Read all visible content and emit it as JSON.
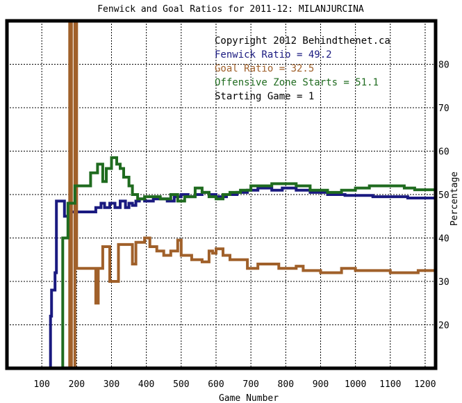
{
  "chart_data": {
    "type": "line",
    "title": "Fenwick and Goal Ratios for 2011-12: MILANJURCINA",
    "xlabel": "Game Number",
    "ylabel": "Percentage",
    "xlim": [
      0,
      1230
    ],
    "ylim": [
      10,
      90
    ],
    "x_ticks": [
      100,
      200,
      300,
      400,
      500,
      600,
      700,
      800,
      900,
      1000,
      1100,
      1200
    ],
    "y_ticks": [
      20,
      30,
      40,
      50,
      60,
      70,
      80
    ],
    "grid": true,
    "annotations": [
      {
        "text": "Copyright 2012 Behindthenet.ca",
        "color": "#000000"
      },
      {
        "text": "Fenwick Ratio = 49.2",
        "color": "#1a1a80"
      },
      {
        "text": "Goal Ratio = 32.5",
        "color": "#a0602a"
      },
      {
        "text": "Offensive Zone Starts = 51.1",
        "color": "#1f6b1f"
      },
      {
        "text": "Starting Game = 1",
        "color": "#000000"
      }
    ],
    "series": [
      {
        "color": "#1a1a80",
        "points": [
          [
            125,
            10
          ],
          [
            125,
            22
          ],
          [
            128,
            22
          ],
          [
            128,
            28
          ],
          [
            138,
            28
          ],
          [
            138,
            32
          ],
          [
            142,
            32
          ],
          [
            142,
            48.5
          ],
          [
            165,
            48.5
          ],
          [
            165,
            45
          ],
          [
            180,
            45
          ],
          [
            180,
            46
          ],
          [
            255,
            46
          ],
          [
            255,
            47
          ],
          [
            270,
            47
          ],
          [
            270,
            48
          ],
          [
            280,
            48
          ],
          [
            280,
            47
          ],
          [
            295,
            47
          ],
          [
            295,
            48
          ],
          [
            310,
            48
          ],
          [
            310,
            47
          ],
          [
            325,
            47
          ],
          [
            325,
            48.5
          ],
          [
            340,
            48.5
          ],
          [
            340,
            47
          ],
          [
            350,
            47
          ],
          [
            350,
            48
          ],
          [
            360,
            48
          ],
          [
            360,
            47.5
          ],
          [
            370,
            47.5
          ],
          [
            370,
            48.5
          ],
          [
            380,
            48.5
          ],
          [
            380,
            49
          ],
          [
            395,
            49
          ],
          [
            395,
            48.5
          ],
          [
            420,
            48.5
          ],
          [
            420,
            49
          ],
          [
            460,
            49
          ],
          [
            460,
            48.5
          ],
          [
            480,
            48.5
          ],
          [
            480,
            49.5
          ],
          [
            500,
            49.5
          ],
          [
            500,
            50
          ],
          [
            520,
            50
          ],
          [
            520,
            49.5
          ],
          [
            540,
            49.5
          ],
          [
            540,
            50
          ],
          [
            560,
            50
          ],
          [
            560,
            50.5
          ],
          [
            580,
            50.5
          ],
          [
            580,
            50
          ],
          [
            600,
            50
          ],
          [
            600,
            49.5
          ],
          [
            630,
            49.5
          ],
          [
            630,
            50
          ],
          [
            660,
            50
          ],
          [
            660,
            50.5
          ],
          [
            690,
            50.5
          ],
          [
            690,
            51
          ],
          [
            720,
            51
          ],
          [
            720,
            51.5
          ],
          [
            760,
            51.5
          ],
          [
            760,
            51
          ],
          [
            790,
            51
          ],
          [
            790,
            51.5
          ],
          [
            830,
            51.5
          ],
          [
            830,
            51
          ],
          [
            870,
            51
          ],
          [
            870,
            50.5
          ],
          [
            920,
            50.5
          ],
          [
            920,
            50
          ],
          [
            970,
            50
          ],
          [
            970,
            49.8
          ],
          [
            1050,
            49.8
          ],
          [
            1050,
            49.5
          ],
          [
            1150,
            49.5
          ],
          [
            1150,
            49.2
          ],
          [
            1230,
            49.2
          ]
        ]
      },
      {
        "color": "#a0602a",
        "points": [
          [
            180,
            10
          ],
          [
            180,
            90
          ],
          [
            185,
            90
          ],
          [
            185,
            10
          ],
          [
            195,
            10
          ],
          [
            195,
            90
          ],
          [
            200,
            90
          ],
          [
            200,
            33
          ],
          [
            255,
            33
          ],
          [
            255,
            25
          ],
          [
            262,
            25
          ],
          [
            262,
            33
          ],
          [
            275,
            33
          ],
          [
            275,
            38
          ],
          [
            295,
            38
          ],
          [
            295,
            30
          ],
          [
            320,
            30
          ],
          [
            320,
            38.5
          ],
          [
            360,
            38.5
          ],
          [
            360,
            34
          ],
          [
            370,
            34
          ],
          [
            370,
            39
          ],
          [
            395,
            39
          ],
          [
            395,
            40
          ],
          [
            410,
            40
          ],
          [
            410,
            38
          ],
          [
            430,
            38
          ],
          [
            430,
            37
          ],
          [
            450,
            37
          ],
          [
            450,
            36
          ],
          [
            470,
            36
          ],
          [
            470,
            37
          ],
          [
            490,
            37
          ],
          [
            490,
            39.5
          ],
          [
            500,
            39.5
          ],
          [
            500,
            36
          ],
          [
            530,
            36
          ],
          [
            530,
            35
          ],
          [
            560,
            35
          ],
          [
            560,
            34.5
          ],
          [
            580,
            34.5
          ],
          [
            580,
            37
          ],
          [
            590,
            37
          ],
          [
            590,
            36.5
          ],
          [
            600,
            36.5
          ],
          [
            600,
            37.5
          ],
          [
            620,
            37.5
          ],
          [
            620,
            36
          ],
          [
            640,
            36
          ],
          [
            640,
            35
          ],
          [
            690,
            35
          ],
          [
            690,
            33
          ],
          [
            720,
            33
          ],
          [
            720,
            34
          ],
          [
            780,
            34
          ],
          [
            780,
            33
          ],
          [
            830,
            33
          ],
          [
            830,
            33.5
          ],
          [
            850,
            33.5
          ],
          [
            850,
            32.5
          ],
          [
            900,
            32.5
          ],
          [
            900,
            32
          ],
          [
            960,
            32
          ],
          [
            960,
            33
          ],
          [
            1000,
            33
          ],
          [
            1000,
            32.5
          ],
          [
            1100,
            32.5
          ],
          [
            1100,
            32
          ],
          [
            1180,
            32
          ],
          [
            1180,
            32.5
          ],
          [
            1230,
            32.5
          ]
        ]
      },
      {
        "color": "#1f6b1f",
        "points": [
          [
            160,
            10
          ],
          [
            160,
            40
          ],
          [
            170,
            40
          ],
          [
            170,
            40
          ],
          [
            175,
            40
          ],
          [
            175,
            48
          ],
          [
            195,
            48
          ],
          [
            195,
            52
          ],
          [
            240,
            52
          ],
          [
            240,
            55
          ],
          [
            260,
            55
          ],
          [
            260,
            57
          ],
          [
            275,
            57
          ],
          [
            275,
            53
          ],
          [
            285,
            53
          ],
          [
            285,
            56
          ],
          [
            300,
            56
          ],
          [
            300,
            58.5
          ],
          [
            315,
            58.5
          ],
          [
            315,
            57
          ],
          [
            325,
            57
          ],
          [
            325,
            56
          ],
          [
            335,
            56
          ],
          [
            335,
            54
          ],
          [
            350,
            54
          ],
          [
            350,
            52
          ],
          [
            360,
            52
          ],
          [
            360,
            50
          ],
          [
            375,
            50
          ],
          [
            375,
            49
          ],
          [
            395,
            49
          ],
          [
            395,
            49.5
          ],
          [
            440,
            49.5
          ],
          [
            440,
            49
          ],
          [
            470,
            49
          ],
          [
            470,
            50
          ],
          [
            490,
            50
          ],
          [
            490,
            48.5
          ],
          [
            510,
            48.5
          ],
          [
            510,
            49.5
          ],
          [
            540,
            49.5
          ],
          [
            540,
            51.5
          ],
          [
            560,
            51.5
          ],
          [
            560,
            50.5
          ],
          [
            580,
            50.5
          ],
          [
            580,
            49.5
          ],
          [
            600,
            49.5
          ],
          [
            600,
            49
          ],
          [
            620,
            49
          ],
          [
            620,
            50
          ],
          [
            640,
            50
          ],
          [
            640,
            50.5
          ],
          [
            670,
            50.5
          ],
          [
            670,
            51
          ],
          [
            700,
            51
          ],
          [
            700,
            52
          ],
          [
            760,
            52
          ],
          [
            760,
            52.5
          ],
          [
            830,
            52.5
          ],
          [
            830,
            52
          ],
          [
            870,
            52
          ],
          [
            870,
            51
          ],
          [
            920,
            51
          ],
          [
            920,
            50.5
          ],
          [
            960,
            50.5
          ],
          [
            960,
            51
          ],
          [
            1000,
            51
          ],
          [
            1000,
            51.5
          ],
          [
            1040,
            51.5
          ],
          [
            1040,
            52
          ],
          [
            1140,
            52
          ],
          [
            1140,
            51.5
          ],
          [
            1170,
            51.5
          ],
          [
            1170,
            51.1
          ],
          [
            1230,
            51.1
          ]
        ]
      }
    ]
  }
}
